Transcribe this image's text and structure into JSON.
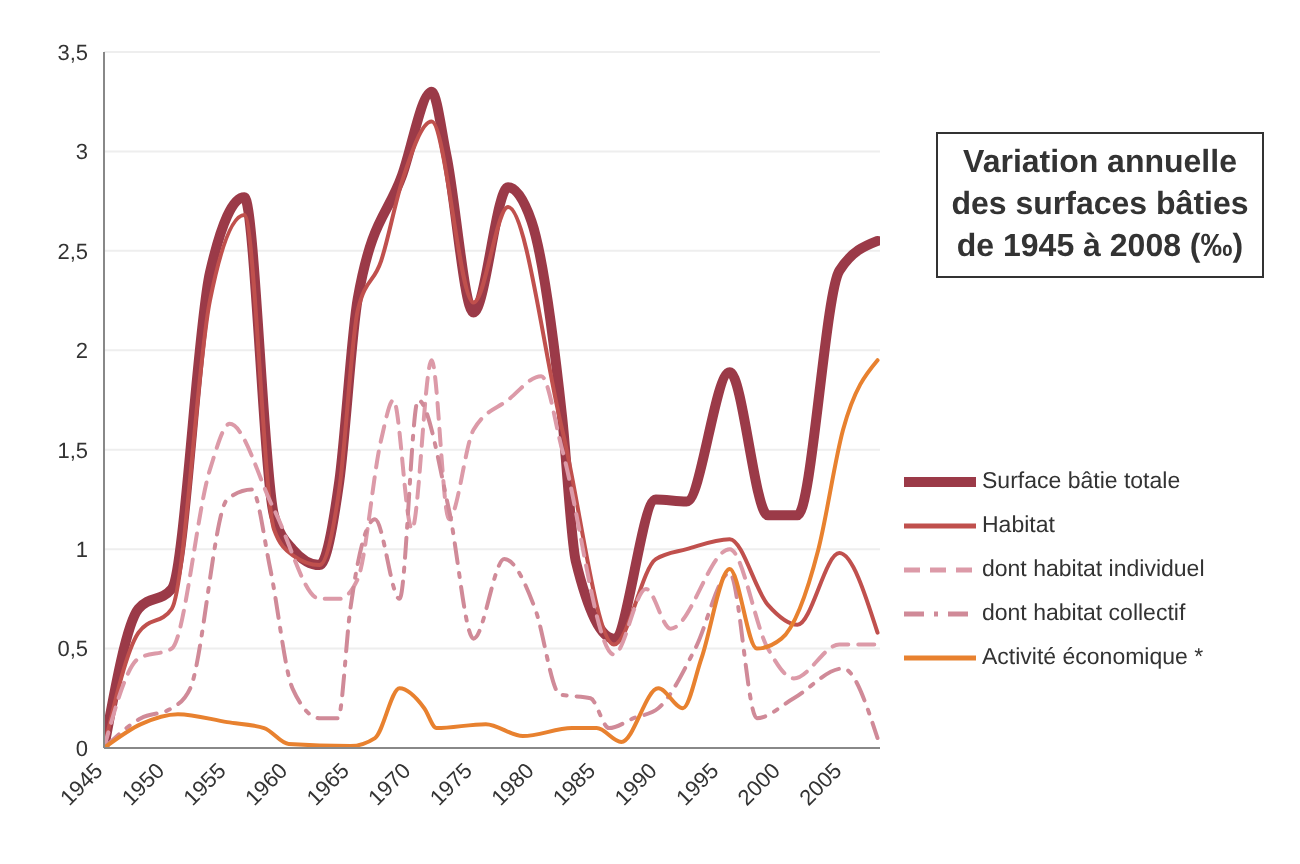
{
  "chart_data": {
    "type": "line",
    "title": "Variation annuelle des surfaces bâties de 1945 à 2008 (‰)",
    "xlim": [
      1945,
      2008
    ],
    "xticks": [
      1945,
      1950,
      1955,
      1960,
      1965,
      1970,
      1975,
      1980,
      1985,
      1990,
      1995,
      2000,
      2005
    ],
    "ylim": [
      0,
      3.5
    ],
    "yticks": [
      {
        "value": 0,
        "label": "0"
      },
      {
        "value": 0.5,
        "label": "0,5"
      },
      {
        "value": 1,
        "label": "1"
      },
      {
        "value": 1.5,
        "label": "1,5"
      },
      {
        "value": 2,
        "label": "2"
      },
      {
        "value": 2.5,
        "label": "2,5"
      },
      {
        "value": 3,
        "label": "3"
      },
      {
        "value": 3.5,
        "label": "3,5"
      }
    ],
    "grid": "y",
    "legend": "right",
    "marker": "none",
    "series": [
      {
        "name": "Surface bâtie totale",
        "color": "#9b3a48",
        "line_style": "solid",
        "x": [
          1945,
          1947.8,
          1950.5,
          1953.6,
          1956.4,
          1958.8,
          1960.3,
          1962.5,
          1964.1,
          1965.6,
          1969.2,
          1971.6,
          1972.8,
          1975,
          1977.8,
          1979.7,
          1982.2,
          1983.3,
          1986.4,
          1989.8,
          1992.3,
          1995.8,
          1998.9,
          2001.3,
          2004.7,
          2007.8
        ],
        "values": [
          0,
          0.7,
          0.8,
          2.39,
          2.77,
          1.17,
          1.0,
          0.92,
          1.34,
          2.26,
          2.88,
          3.3,
          2.98,
          2.19,
          2.82,
          2.65,
          1.66,
          0.94,
          0.55,
          1.25,
          1.24,
          1.89,
          1.17,
          1.17,
          2.4,
          2.55
        ]
      },
      {
        "name": "Habitat",
        "color": "#c0504d",
        "line_style": "solid",
        "x": [
          1945,
          1947.8,
          1950.5,
          1953.6,
          1956.4,
          1958.8,
          1960.3,
          1962.5,
          1964.1,
          1965.6,
          1967.5,
          1969.2,
          1971.6,
          1975,
          1977.8,
          1982.2,
          1986.4,
          1989.8,
          1992.3,
          1995.8,
          1998.9,
          2001.3,
          2004.7,
          2007.8
        ],
        "values": [
          0,
          0.58,
          0.7,
          2.25,
          2.68,
          1.1,
          0.97,
          0.92,
          1.3,
          2.2,
          2.45,
          2.85,
          3.15,
          2.24,
          2.72,
          1.6,
          0.52,
          0.95,
          1.0,
          1.05,
          0.72,
          0.62,
          0.98,
          0.58
        ]
      },
      {
        "name": "dont habitat individuel",
        "color": "#dc9aa8",
        "line_style": "dashed",
        "x": [
          1945,
          1947.8,
          1950.5,
          1953.6,
          1955.2,
          1958.8,
          1962.5,
          1964.1,
          1965.6,
          1967.5,
          1968.5,
          1970,
          1971.6,
          1973,
          1975,
          1977.8,
          1980.5,
          1982.2,
          1986.4,
          1989,
          1991,
          1995.8,
          1998.9,
          2001,
          2004.7,
          2007.8
        ],
        "values": [
          0,
          0.45,
          0.5,
          1.4,
          1.63,
          1.2,
          0.75,
          0.75,
          0.85,
          1.55,
          1.75,
          1.1,
          1.95,
          1.15,
          1.6,
          1.75,
          1.87,
          1.5,
          0.47,
          0.8,
          0.6,
          1.0,
          0.5,
          0.35,
          0.52,
          0.52
        ]
      },
      {
        "name": "dont habitat collectif",
        "color": "#d08a98",
        "line_style": "dashdot",
        "x": [
          1945,
          1948,
          1950.5,
          1952,
          1955,
          1957,
          1958.5,
          1960.3,
          1962.5,
          1964,
          1965,
          1967,
          1969,
          1970.5,
          1973,
          1975,
          1977.5,
          1980,
          1982,
          1984.5,
          1986,
          1988,
          1990,
          1993,
          1995.8,
          1998,
          2001,
          2005,
          2007.8
        ],
        "values": [
          0,
          0.15,
          0.2,
          0.3,
          1.25,
          1.3,
          0.9,
          0.3,
          0.15,
          0.15,
          0.7,
          1.15,
          0.75,
          1.75,
          1.2,
          0.55,
          0.95,
          0.7,
          0.27,
          0.25,
          0.1,
          0.15,
          0.2,
          0.5,
          0.88,
          0.15,
          0.25,
          0.4,
          0.05
        ]
      },
      {
        "name": "Activité économique *",
        "color": "#e8812f",
        "line_style": "solid",
        "x": [
          1945,
          1948,
          1951,
          1955,
          1958,
          1960,
          1965,
          1967,
          1969,
          1971,
          1972,
          1976,
          1979,
          1983,
          1985,
          1987,
          1990,
          1992,
          1993.5,
          1995.8,
          1998,
          2000,
          2003,
          2005,
          2007.8
        ],
        "values": [
          0,
          0.12,
          0.17,
          0.13,
          0.1,
          0.02,
          0.01,
          0.05,
          0.3,
          0.2,
          0.1,
          0.12,
          0.06,
          0.1,
          0.1,
          0.03,
          0.3,
          0.2,
          0.45,
          0.9,
          0.5,
          0.55,
          1.0,
          1.6,
          1.95
        ]
      }
    ]
  }
}
